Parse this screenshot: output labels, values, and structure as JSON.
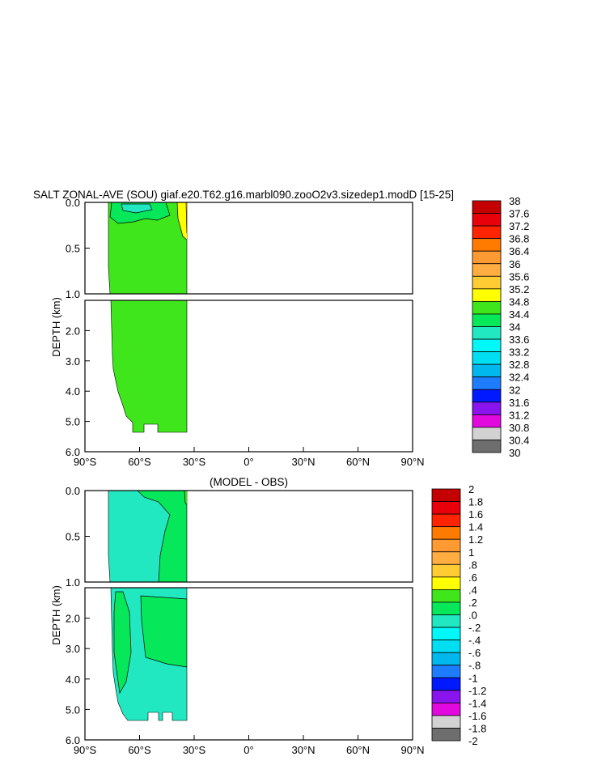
{
  "figure_title": "SALT ZONAL-AVE (SOU) giaf.e20.T62.g16.marbl090.zooO2v3.sizedep1.modD [15-25]",
  "colors": {
    "plot_frame": "#000000",
    "contour_line": "#000000"
  },
  "chart_data": [
    {
      "type": "contour",
      "title": "SALT ZONAL-AVE (SOU) giaf.e20.T62.g16.marbl090.zooO2v3.sizedep1.modD [15-25]",
      "ylabel": "DEPTH (km)",
      "xlabel": "",
      "x_ticks": [
        "90°S",
        "60°S",
        "30°S",
        "0°",
        "30°N",
        "60°N",
        "90°N"
      ],
      "y_ticks_upper": [
        "0.0",
        "0.5",
        "1.0"
      ],
      "y_ticks_lower": [
        "2.0",
        "3.0",
        "4.0",
        "5.0",
        "6.0"
      ],
      "x_range": [
        -90,
        90
      ],
      "y_range_upper": [
        0,
        1.0
      ],
      "y_range_lower": [
        1.0,
        6.0
      ],
      "field_extent_lat": [
        -78,
        -34
      ],
      "regions": [
        {
          "label": "34.4",
          "color": "#3fe61b",
          "description": "dominant salinity class 34.4-34.8 filling the Southern Ocean section"
        },
        {
          "label": "34",
          "color": "#06e85a",
          "description": "near-surface tongue at 60S-45S, upper 0.1 km"
        },
        {
          "label": "33.6",
          "color": "#22e8c2",
          "description": "surface patch near 58S"
        },
        {
          "label": "34.8",
          "color": "#ffff00",
          "description": "near 35S, upper 0.5 km"
        },
        {
          "label": "35.2",
          "color": "#ffcc33",
          "description": "thin strip near 34S, surface"
        }
      ],
      "colorbar": {
        "labels": [
          "38",
          "37.6",
          "37.2",
          "36.8",
          "36.4",
          "36",
          "35.6",
          "35.2",
          "34.8",
          "34.4",
          "34",
          "33.6",
          "33.2",
          "32.8",
          "32.4",
          "32",
          "31.6",
          "31.2",
          "30.8",
          "30.4",
          "30"
        ],
        "colors": [
          "#c40000",
          "#e8000a",
          "#ff2400",
          "#ff7b00",
          "#ff9a33",
          "#ffad40",
          "#ffcc33",
          "#ffff00",
          "#3fe61b",
          "#06e85a",
          "#22e8c2",
          "#00f8f8",
          "#00dff2",
          "#00b8ee",
          "#1e7dff",
          "#0019ff",
          "#8a14ee",
          "#e209de",
          "#d2d2d2",
          "#6e6e6e"
        ]
      }
    },
    {
      "type": "contour",
      "title": "(MODEL - OBS)",
      "ylabel": "DEPTH (km)",
      "xlabel": "",
      "x_ticks": [
        "90°S",
        "60°S",
        "30°S",
        "0°",
        "30°N",
        "60°N",
        "90°N"
      ],
      "y_ticks_upper": [
        "0.0",
        "0.5",
        "1.0"
      ],
      "y_ticks_lower": [
        "2.0",
        "3.0",
        "4.0",
        "5.0",
        "6.0"
      ],
      "x_range": [
        -90,
        90
      ],
      "y_range_upper": [
        0,
        1.0
      ],
      "y_range_lower": [
        1.0,
        6.0
      ],
      "field_extent_lat": [
        -78,
        -34
      ],
      "regions": [
        {
          "label": ".0",
          "color": "#22e8c2",
          "description": "dominant difference class 0.0-0.2 background"
        },
        {
          "label": ".2",
          "color": "#06e85a",
          "description": "positive anomaly bands near 45S-35S and 72S-62S"
        },
        {
          "label": ".4",
          "color": "#3fe61b",
          "description": "small positive anomaly near surface at 35S"
        },
        {
          "label": ".8",
          "color": "#ffcc33",
          "description": "thin strip near 34S, surface"
        }
      ],
      "colorbar": {
        "labels": [
          "2",
          "1.8",
          "1.6",
          "1.4",
          "1.2",
          "1",
          ".8",
          ".6",
          ".4",
          ".2",
          ".0",
          "-.2",
          "-.4",
          "-.6",
          "-.8",
          "-1",
          "-1.2",
          "-1.4",
          "-1.6",
          "-1.8",
          "-2"
        ],
        "colors": [
          "#c40000",
          "#e8000a",
          "#ff2400",
          "#ff7b00",
          "#ff9a33",
          "#ffad40",
          "#ffcc33",
          "#ffff00",
          "#3fe61b",
          "#06e85a",
          "#22e8c2",
          "#00f8f8",
          "#00dff2",
          "#00b8ee",
          "#1e7dff",
          "#0019ff",
          "#8a14ee",
          "#e209de",
          "#d2d2d2",
          "#6e6e6e"
        ]
      }
    }
  ]
}
